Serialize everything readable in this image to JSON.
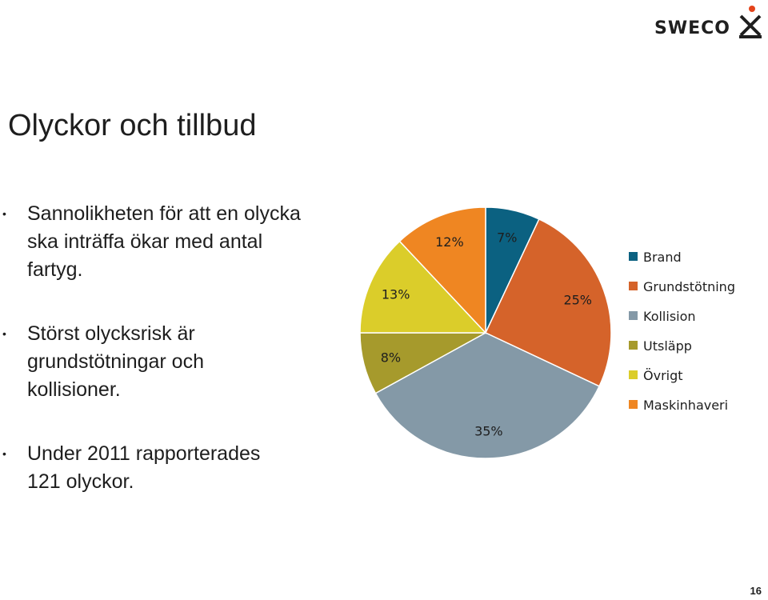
{
  "brand": {
    "name": "SWECO"
  },
  "slide": {
    "title": "Olyckor och tillbud",
    "bullets": [
      "Sannolikheten för att en olycka ska inträffa ökar med antal fartyg.",
      "Störst olycksrisk är grundstötningar och kollisioner.",
      "Under 2011 rapporterades 121 olyckor."
    ],
    "page_number": "16"
  },
  "chart_data": {
    "type": "pie",
    "title": "",
    "legend_position": "right",
    "slices": [
      {
        "name": "Brand",
        "value": 7,
        "label": "7%",
        "color": "#0b6181"
      },
      {
        "name": "Grundstötning",
        "value": 25,
        "label": "25%",
        "color": "#d5632a"
      },
      {
        "name": "Kollision",
        "value": 35,
        "label": "35%",
        "color": "#8499a7"
      },
      {
        "name": "Utsläpp",
        "value": 8,
        "label": "8%",
        "color": "#a69a2c"
      },
      {
        "name": "Övrigt",
        "value": 13,
        "label": "13%",
        "color": "#dbcd2a"
      },
      {
        "name": "Maskinhaveri",
        "value": 12,
        "label": "12%",
        "color": "#ef8622"
      }
    ]
  }
}
